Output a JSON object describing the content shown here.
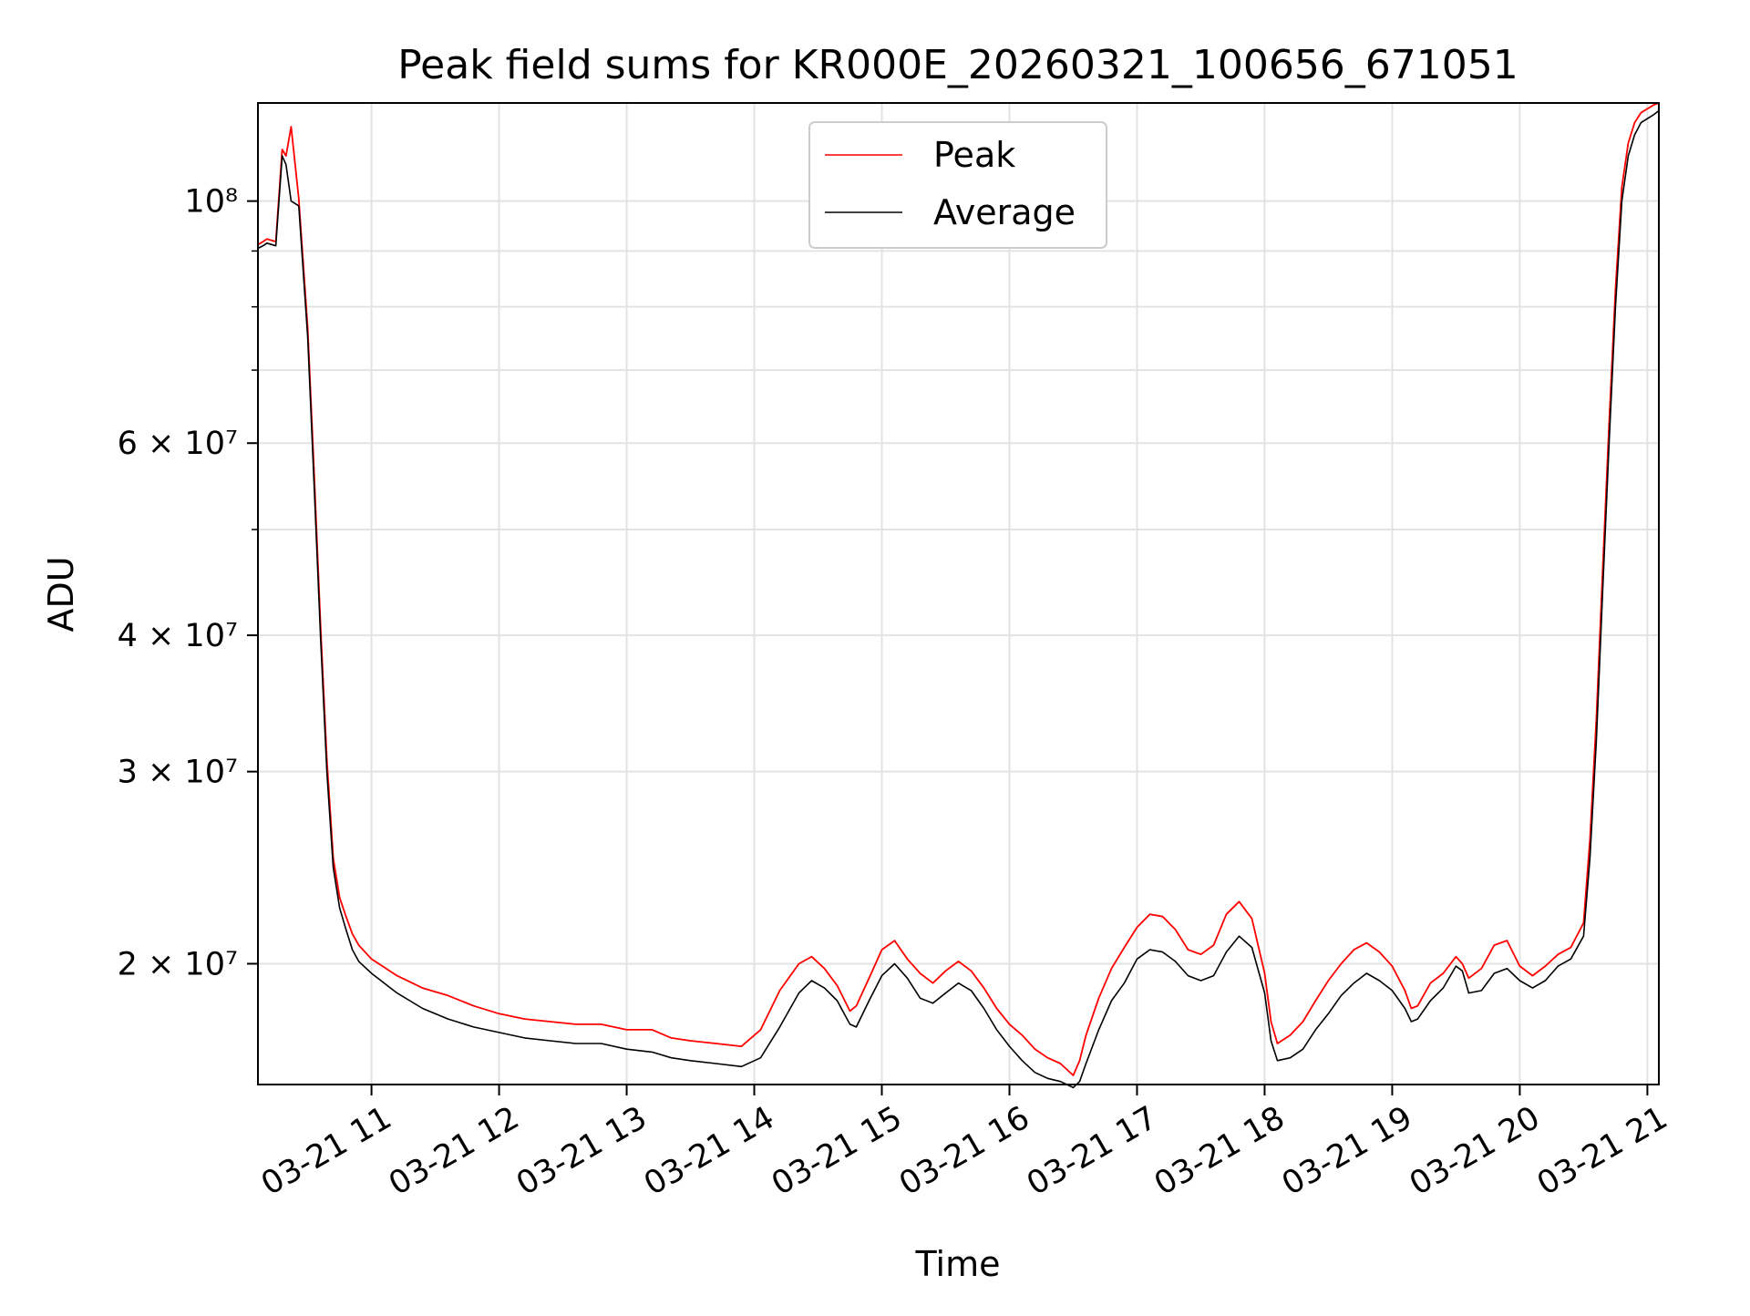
{
  "chart_data": {
    "type": "line",
    "title": "Peak field sums for KR000E_20260321_100656_671051",
    "xlabel": "Time",
    "ylabel": "ADU",
    "yscale": "log",
    "grid": true,
    "legend_position": "upper center",
    "xlim_hours": [
      10.11,
      21.09
    ],
    "ylim": [
      15500000,
      123000000
    ],
    "x_ticks": [
      {
        "value": 11,
        "label": "03-21 11"
      },
      {
        "value": 12,
        "label": "03-21 12"
      },
      {
        "value": 13,
        "label": "03-21 13"
      },
      {
        "value": 14,
        "label": "03-21 14"
      },
      {
        "value": 15,
        "label": "03-21 15"
      },
      {
        "value": 16,
        "label": "03-21 16"
      },
      {
        "value": 17,
        "label": "03-21 17"
      },
      {
        "value": 18,
        "label": "03-21 18"
      },
      {
        "value": 19,
        "label": "03-21 19"
      },
      {
        "value": 20,
        "label": "03-21 20"
      },
      {
        "value": 21,
        "label": "03-21 21"
      }
    ],
    "y_ticks_major": [
      {
        "value": 20000000,
        "label": "2 × 10⁷"
      },
      {
        "value": 30000000,
        "label": "3 × 10⁷"
      },
      {
        "value": 40000000,
        "label": "4 × 10⁷"
      },
      {
        "value": 60000000,
        "label": "6 × 10⁷"
      },
      {
        "value": 100000000,
        "label": "10⁸"
      }
    ],
    "y_ticks_minor": [
      50000000,
      70000000,
      80000000,
      90000000
    ],
    "series": [
      {
        "name": "Average",
        "color": "#000000",
        "x": [
          10.11,
          10.15,
          10.18,
          10.25,
          10.3,
          10.33,
          10.37,
          10.43,
          10.5,
          10.55,
          10.6,
          10.65,
          10.7,
          10.75,
          10.8,
          10.85,
          10.9,
          11.0,
          11.2,
          11.4,
          11.6,
          11.8,
          12.0,
          12.2,
          12.4,
          12.6,
          12.8,
          13.0,
          13.2,
          13.35,
          13.5,
          13.7,
          13.9,
          14.05,
          14.2,
          14.35,
          14.45,
          14.55,
          14.65,
          14.75,
          14.8,
          14.9,
          15.0,
          15.1,
          15.2,
          15.3,
          15.4,
          15.5,
          15.6,
          15.7,
          15.8,
          15.9,
          16.0,
          16.1,
          16.2,
          16.3,
          16.4,
          16.5,
          16.55,
          16.6,
          16.7,
          16.8,
          16.9,
          17.0,
          17.1,
          17.2,
          17.3,
          17.4,
          17.5,
          17.6,
          17.7,
          17.8,
          17.9,
          18.0,
          18.05,
          18.1,
          18.2,
          18.3,
          18.4,
          18.5,
          18.6,
          18.7,
          18.8,
          18.9,
          19.0,
          19.1,
          19.15,
          19.2,
          19.3,
          19.4,
          19.5,
          19.55,
          19.6,
          19.7,
          19.8,
          19.9,
          20.0,
          20.1,
          20.2,
          20.3,
          20.4,
          20.5,
          20.55,
          20.6,
          20.65,
          20.7,
          20.75,
          20.8,
          20.85,
          20.9,
          20.95,
          21.0,
          21.05,
          21.09
        ],
        "values": [
          90500000,
          91000000,
          91500000,
          91000000,
          110000000,
          108000000,
          100000000,
          99000000,
          75000000,
          55000000,
          40000000,
          30000000,
          24500000,
          22500000,
          21500000,
          20600000,
          20100000,
          19600000,
          18800000,
          18200000,
          17800000,
          17500000,
          17300000,
          17100000,
          17000000,
          16900000,
          16900000,
          16700000,
          16600000,
          16400000,
          16300000,
          16200000,
          16100000,
          16400000,
          17500000,
          18800000,
          19300000,
          19000000,
          18500000,
          17600000,
          17500000,
          18500000,
          19500000,
          20000000,
          19400000,
          18600000,
          18400000,
          18800000,
          19200000,
          18900000,
          18200000,
          17400000,
          16800000,
          16300000,
          15900000,
          15700000,
          15600000,
          15400000,
          15600000,
          16200000,
          17400000,
          18500000,
          19200000,
          20200000,
          20600000,
          20500000,
          20100000,
          19500000,
          19300000,
          19500000,
          20500000,
          21200000,
          20700000,
          18800000,
          17000000,
          16300000,
          16400000,
          16700000,
          17400000,
          18000000,
          18700000,
          19200000,
          19600000,
          19300000,
          18900000,
          18200000,
          17700000,
          17800000,
          18500000,
          19000000,
          19900000,
          19700000,
          18800000,
          18900000,
          19600000,
          19800000,
          19300000,
          19000000,
          19300000,
          19900000,
          20200000,
          21200000,
          25000000,
          32000000,
          44000000,
          60000000,
          80000000,
          100000000,
          110000000,
          115000000,
          118000000,
          119000000,
          120000000,
          121000000
        ]
      },
      {
        "name": "Peak",
        "color": "#ff0000",
        "x": [
          10.11,
          10.15,
          10.18,
          10.25,
          10.3,
          10.33,
          10.37,
          10.43,
          10.5,
          10.55,
          10.6,
          10.65,
          10.7,
          10.75,
          10.8,
          10.85,
          10.9,
          11.0,
          11.2,
          11.4,
          11.6,
          11.8,
          12.0,
          12.2,
          12.4,
          12.6,
          12.8,
          13.0,
          13.2,
          13.35,
          13.5,
          13.7,
          13.9,
          14.05,
          14.2,
          14.35,
          14.45,
          14.55,
          14.65,
          14.75,
          14.8,
          14.9,
          15.0,
          15.1,
          15.2,
          15.3,
          15.4,
          15.5,
          15.6,
          15.7,
          15.8,
          15.9,
          16.0,
          16.1,
          16.2,
          16.3,
          16.4,
          16.5,
          16.55,
          16.6,
          16.7,
          16.8,
          16.9,
          17.0,
          17.1,
          17.2,
          17.3,
          17.4,
          17.5,
          17.6,
          17.7,
          17.8,
          17.9,
          18.0,
          18.05,
          18.1,
          18.2,
          18.3,
          18.4,
          18.5,
          18.6,
          18.7,
          18.8,
          18.9,
          19.0,
          19.1,
          19.15,
          19.2,
          19.3,
          19.4,
          19.5,
          19.55,
          19.6,
          19.7,
          19.8,
          19.9,
          20.0,
          20.1,
          20.2,
          20.3,
          20.4,
          20.5,
          20.55,
          20.6,
          20.65,
          20.7,
          20.75,
          20.8,
          20.85,
          20.9,
          20.95,
          21.0,
          21.05,
          21.09
        ],
        "values": [
          91200000,
          91800000,
          92300000,
          91800000,
          111500000,
          110000000,
          117000000,
          100500000,
          76500000,
          56500000,
          41000000,
          30800000,
          25000000,
          23000000,
          22100000,
          21300000,
          20800000,
          20200000,
          19500000,
          19000000,
          18700000,
          18300000,
          18000000,
          17800000,
          17700000,
          17600000,
          17600000,
          17400000,
          17400000,
          17100000,
          17000000,
          16900000,
          16800000,
          17400000,
          18900000,
          20000000,
          20300000,
          19800000,
          19100000,
          18100000,
          18300000,
          19400000,
          20600000,
          21000000,
          20200000,
          19600000,
          19200000,
          19700000,
          20100000,
          19700000,
          19000000,
          18200000,
          17600000,
          17200000,
          16700000,
          16400000,
          16200000,
          15800000,
          16300000,
          17200000,
          18600000,
          19800000,
          20700000,
          21600000,
          22200000,
          22100000,
          21500000,
          20600000,
          20400000,
          20800000,
          22200000,
          22800000,
          22000000,
          19600000,
          17700000,
          16900000,
          17200000,
          17700000,
          18500000,
          19300000,
          20000000,
          20600000,
          20900000,
          20500000,
          19900000,
          18900000,
          18200000,
          18300000,
          19200000,
          19600000,
          20300000,
          20000000,
          19400000,
          19800000,
          20800000,
          21000000,
          19900000,
          19500000,
          19900000,
          20400000,
          20700000,
          21800000,
          26000000,
          33500000,
          46000000,
          62500000,
          83000000,
          103000000,
          113000000,
          118000000,
          120500000,
          121500000,
          122500000,
          123000000
        ]
      }
    ]
  }
}
